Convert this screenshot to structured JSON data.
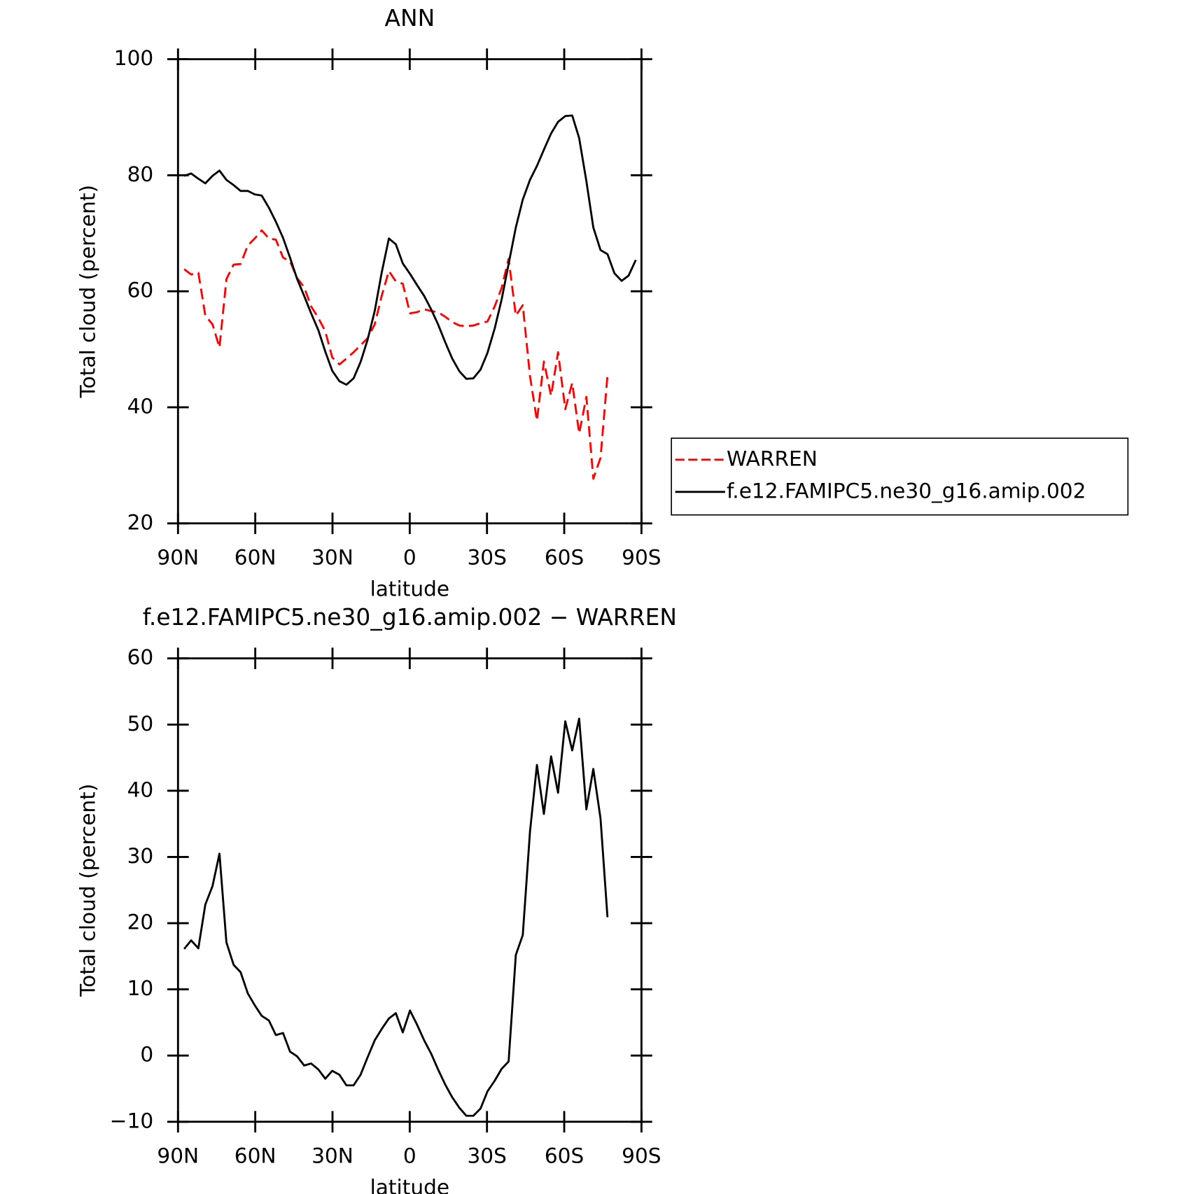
{
  "chart_data": [
    {
      "type": "line",
      "title": "ANN",
      "xlabel": "latitude",
      "ylabel": "Total cloud (percent)",
      "x": [
        87.6,
        84.9,
        82.1,
        79.4,
        76.6,
        73.9,
        71.2,
        68.4,
        65.7,
        62.9,
        60.2,
        57.5,
        54.7,
        52.0,
        49.2,
        46.5,
        43.8,
        41.0,
        38.3,
        35.5,
        32.8,
        30.1,
        27.3,
        24.6,
        21.8,
        19.1,
        16.4,
        13.6,
        10.9,
        8.1,
        5.4,
        2.7,
        -0.1,
        -2.8,
        -5.6,
        -8.3,
        -11.0,
        -13.8,
        -16.5,
        -19.3,
        -22.0,
        -24.7,
        -27.5,
        -30.2,
        -33.0,
        -35.7,
        -38.4,
        -41.2,
        -43.9,
        -46.7,
        -49.4,
        -52.1,
        -54.9,
        -57.6,
        -60.4,
        -63.1,
        -65.8,
        -68.6,
        -71.3,
        -74.1,
        -76.8,
        -79.5,
        -82.3,
        -85.0,
        -87.8
      ],
      "series": [
        {
          "name": "WARREN",
          "color": "#ff0000",
          "dashed": true,
          "values": [
            63.8,
            62.9,
            63.2,
            55.8,
            54.3,
            50.3,
            62.1,
            64.6,
            64.7,
            67.9,
            69.1,
            70.5,
            69.1,
            68.9,
            65.8,
            65.2,
            62.3,
            60.7,
            57.4,
            55.4,
            53.1,
            48.6,
            47.4,
            48.4,
            49.5,
            50.7,
            51.9,
            54.3,
            59.2,
            63.5,
            61.7,
            61.3,
            56.2,
            56.4,
            56.9,
            56.6,
            56.4,
            55.6,
            54.7,
            54.1,
            54.0,
            54.1,
            54.5,
            54.8,
            57.4,
            60.6,
            65.6,
            55.8,
            57.6,
            45.4,
            37.7,
            47.9,
            42.0,
            49.5,
            39.7,
            44.2,
            35.5,
            41.8,
            27.7,
            31.3,
            45.5,
            null,
            null,
            null,
            null
          ]
        },
        {
          "name": "f.e12.FAMIPC5.ne30_g16.amip.002",
          "color": "#000000",
          "dashed": false,
          "values": [
            79.9,
            80.3,
            79.4,
            78.6,
            79.9,
            80.8,
            79.2,
            78.3,
            77.3,
            77.3,
            76.7,
            76.5,
            74.4,
            72.0,
            69.2,
            65.8,
            62.2,
            59.2,
            56.2,
            53.3,
            49.6,
            46.3,
            44.5,
            43.9,
            45.0,
            47.8,
            51.6,
            56.6,
            63.2,
            69.1,
            68.1,
            64.8,
            63.0,
            61.1,
            59.2,
            56.9,
            54.3,
            51.2,
            48.4,
            46.2,
            44.9,
            45.0,
            46.5,
            49.4,
            53.6,
            58.6,
            64.7,
            71.0,
            75.8,
            79.2,
            81.6,
            84.4,
            87.2,
            89.2,
            90.2,
            90.3,
            86.4,
            79.0,
            71.0,
            67.1,
            66.4,
            63.1,
            61.8,
            62.7,
            65.4
          ]
        }
      ],
      "xlim": [
        90,
        -90
      ],
      "xticks": [
        {
          "value": 90,
          "label": "90N"
        },
        {
          "value": 60,
          "label": "60N"
        },
        {
          "value": 30,
          "label": "30N"
        },
        0,
        {
          "value": -30,
          "label": "30S"
        },
        {
          "value": -60,
          "label": "60S"
        },
        {
          "value": -90,
          "label": "90S"
        }
      ],
      "ylim": [
        20,
        100
      ],
      "yticks": [
        20,
        40,
        60,
        80,
        100
      ],
      "legend": "right"
    },
    {
      "type": "line",
      "title": "f.e12.FAMIPC5.ne30_g16.amip.002 − WARREN",
      "xlabel": "latitude",
      "ylabel": "Total cloud (percent)",
      "x": [
        87.6,
        84.9,
        82.1,
        79.4,
        76.6,
        73.9,
        71.2,
        68.4,
        65.7,
        62.9,
        60.2,
        57.5,
        54.7,
        52.0,
        49.2,
        46.5,
        43.8,
        41.0,
        38.3,
        35.5,
        32.8,
        30.1,
        27.3,
        24.6,
        21.8,
        19.1,
        16.4,
        13.6,
        10.9,
        8.1,
        5.4,
        2.7,
        -0.1,
        -2.8,
        -5.6,
        -8.3,
        -11.0,
        -13.8,
        -16.5,
        -19.3,
        -22.0,
        -24.7,
        -27.5,
        -30.2,
        -33.0,
        -35.7,
        -38.4,
        -41.2,
        -43.9,
        -46.7,
        -49.4,
        -52.1,
        -54.9,
        -57.6,
        -60.4,
        -63.1,
        -65.8,
        -68.6,
        -71.3,
        -74.1,
        -76.8,
        -79.5,
        -82.3,
        -85.0,
        -87.8
      ],
      "color": "#000000",
      "values": [
        16.1,
        17.4,
        16.2,
        22.8,
        25.6,
        30.5,
        17.1,
        13.7,
        12.6,
        9.4,
        7.6,
        6.0,
        5.3,
        3.1,
        3.4,
        0.6,
        -0.1,
        -1.5,
        -1.2,
        -2.1,
        -3.5,
        -2.3,
        -2.9,
        -4.5,
        -4.5,
        -2.9,
        -0.3,
        2.3,
        4.0,
        5.6,
        6.4,
        3.5,
        6.8,
        4.7,
        2.3,
        0.3,
        -2.1,
        -4.4,
        -6.3,
        -7.9,
        -9.1,
        -9.1,
        -8.0,
        -5.4,
        -3.8,
        -2.0,
        -0.9,
        15.2,
        18.2,
        33.8,
        43.9,
        36.5,
        45.2,
        39.7,
        50.5,
        46.1,
        50.9,
        37.2,
        43.3,
        35.8,
        20.9,
        null,
        null,
        null,
        null
      ],
      "xlim": [
        90,
        -90
      ],
      "xticks": [
        {
          "value": 90,
          "label": "90N"
        },
        {
          "value": 60,
          "label": "60N"
        },
        {
          "value": 30,
          "label": "30N"
        },
        0,
        {
          "value": -30,
          "label": "30S"
        },
        {
          "value": -60,
          "label": "60S"
        },
        {
          "value": -90,
          "label": "90S"
        }
      ],
      "ylim": [
        -10,
        60
      ],
      "yticks": [
        {
          "value": -10,
          "label": "−10"
        },
        0,
        10,
        20,
        30,
        40,
        50,
        60
      ]
    }
  ]
}
